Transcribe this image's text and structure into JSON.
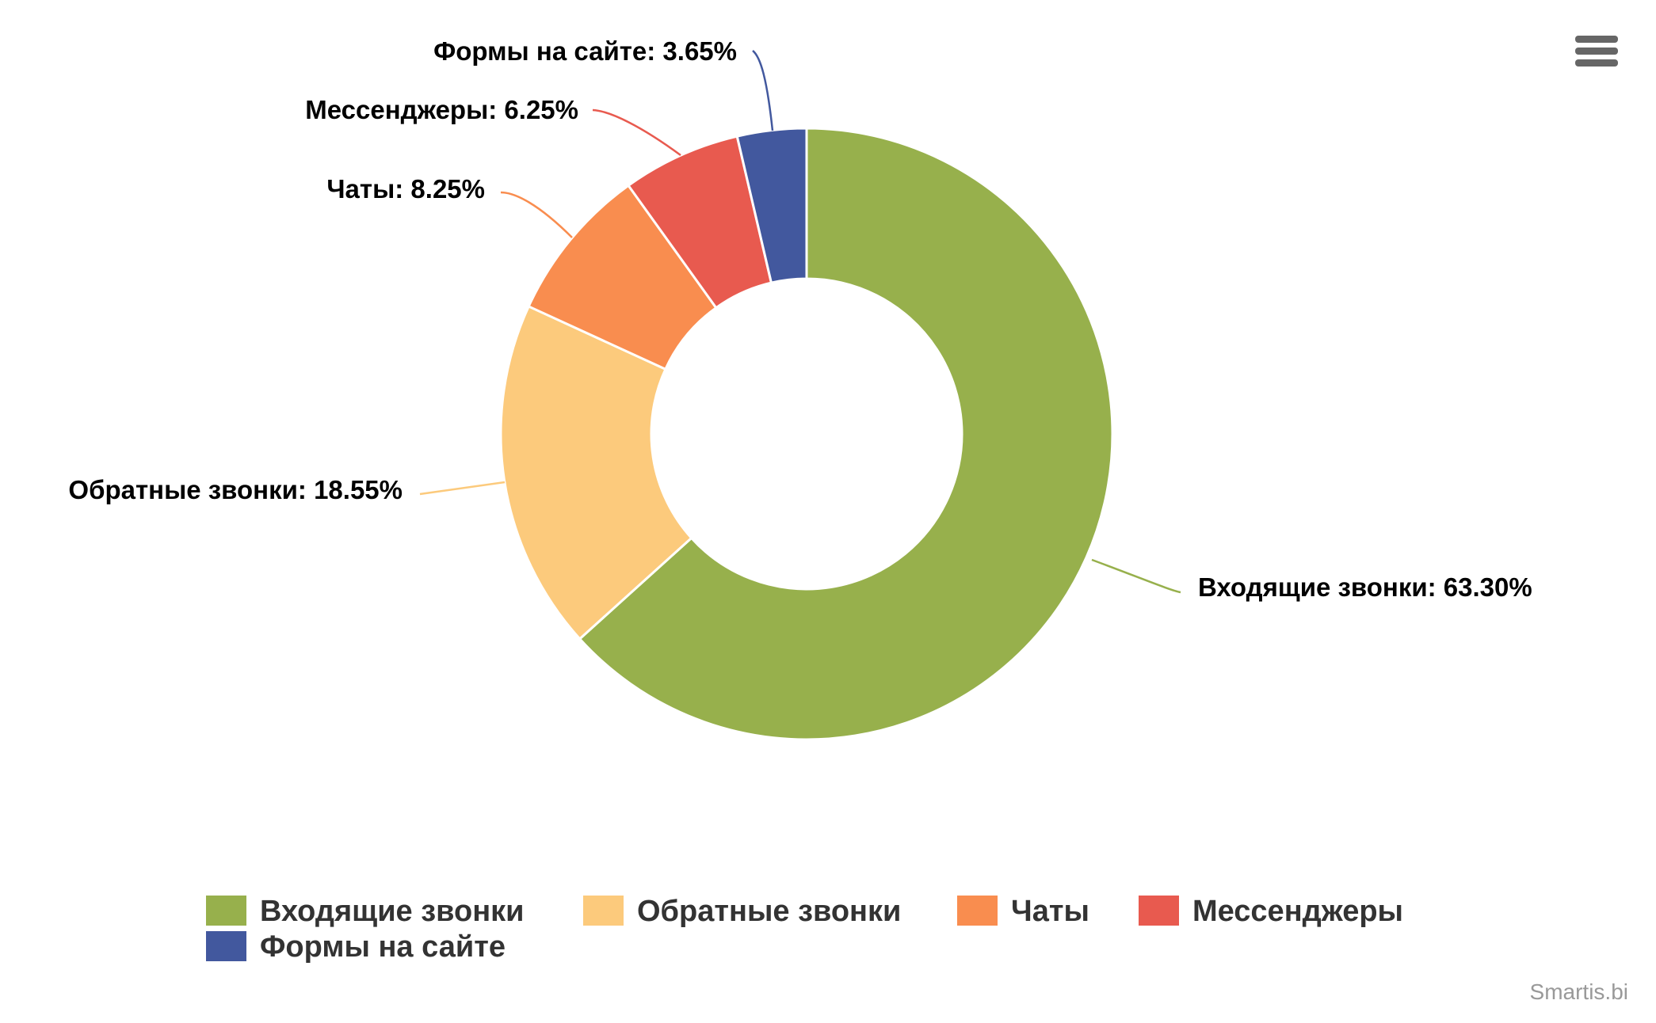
{
  "chart_data": {
    "type": "pie",
    "donut": true,
    "title": "",
    "series": [
      {
        "name": "",
        "slices": [
          {
            "label": "Входящие звонки",
            "value": 63.3,
            "color": "#97b04c"
          },
          {
            "label": "Обратные звонки",
            "value": 18.55,
            "color": "#fcca7c"
          },
          {
            "label": "Чаты",
            "value": 8.25,
            "color": "#f98d4f"
          },
          {
            "label": "Мессенджеры",
            "value": 6.25,
            "color": "#e85a4f"
          },
          {
            "label": "Формы на сайте",
            "value": 3.65,
            "color": "#42589e"
          }
        ]
      }
    ],
    "data_labels": [
      "Входящие звонки: 63.30%",
      "Обратные звонки: 18.55%",
      "Чаты: 8.25%",
      "Мессенджеры: 6.25%",
      "Формы на сайте: 3.65%"
    ],
    "legend": {
      "position": "bottom",
      "items": [
        "Входящие звонки",
        "Обратные звонки",
        "Чаты",
        "Мессенджеры",
        "Формы на сайте"
      ]
    },
    "credits": "Smartis.bi"
  },
  "toolbar": {
    "menu_icon": "hamburger-menu-icon"
  }
}
